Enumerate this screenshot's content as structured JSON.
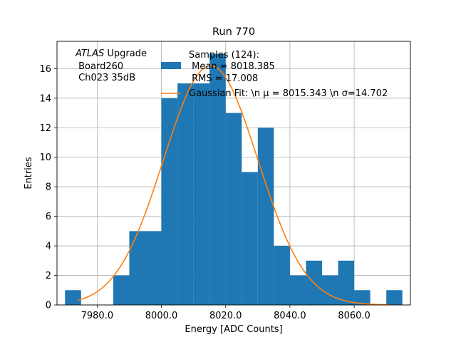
{
  "chart_data": {
    "type": "bar",
    "title": "Run 770",
    "xlabel": "Energy [ADC Counts]",
    "ylabel": "Entries",
    "xlim": [
      7967.5,
      8077.5
    ],
    "ylim": [
      0,
      17.85
    ],
    "xticks": [
      7980,
      8000,
      8020,
      8040,
      8060
    ],
    "xtick_labels": [
      "7980.0",
      "8000.0",
      "8020.0",
      "8040.0",
      "8060.0"
    ],
    "yticks": [
      0,
      2,
      4,
      6,
      8,
      10,
      12,
      14,
      16
    ],
    "ytick_labels": [
      "0",
      "2",
      "4",
      "6",
      "8",
      "10",
      "12",
      "14",
      "16"
    ],
    "grid": true,
    "annotation": {
      "italic": "ATLAS",
      "line1": " Upgrade",
      "line2": " Board260",
      "line3": " Ch023 35dB"
    },
    "histogram": {
      "name": "Samples (124):",
      "legend_lines": [
        "Samples (124):",
        " Mean = 8018.385",
        " RMS = 17.008"
      ],
      "color": "#1f77b4",
      "bins": [
        {
          "x0": 7970,
          "x1": 7975,
          "count": 1
        },
        {
          "x0": 7975,
          "x1": 7980,
          "count": 0
        },
        {
          "x0": 7980,
          "x1": 7985,
          "count": 0
        },
        {
          "x0": 7985,
          "x1": 7990,
          "count": 2
        },
        {
          "x0": 7990,
          "x1": 7995,
          "count": 5
        },
        {
          "x0": 7995,
          "x1": 8000,
          "count": 5
        },
        {
          "x0": 8000,
          "x1": 8005,
          "count": 14
        },
        {
          "x0": 8005,
          "x1": 8010,
          "count": 15
        },
        {
          "x0": 8010,
          "x1": 8015,
          "count": 15
        },
        {
          "x0": 8015,
          "x1": 8020,
          "count": 17
        },
        {
          "x0": 8020,
          "x1": 8025,
          "count": 13
        },
        {
          "x0": 8025,
          "x1": 8030,
          "count": 9
        },
        {
          "x0": 8030,
          "x1": 8035,
          "count": 12
        },
        {
          "x0": 8035,
          "x1": 8040,
          "count": 4
        },
        {
          "x0": 8040,
          "x1": 8045,
          "count": 2
        },
        {
          "x0": 8045,
          "x1": 8050,
          "count": 3
        },
        {
          "x0": 8050,
          "x1": 8055,
          "count": 2
        },
        {
          "x0": 8055,
          "x1": 8060,
          "count": 3
        },
        {
          "x0": 8060,
          "x1": 8065,
          "count": 1
        },
        {
          "x0": 8065,
          "x1": 8070,
          "count": 0
        },
        {
          "x0": 8070,
          "x1": 8075,
          "count": 1
        }
      ]
    },
    "fit": {
      "legend_label": "Gaussian Fit: \\n μ = 8015.343 \\n σ=14.702",
      "color": "#ff7f0e",
      "mu": 8015.343,
      "sigma": 14.702,
      "amplitude": 16.2,
      "x_range": [
        7974,
        8071
      ]
    }
  }
}
